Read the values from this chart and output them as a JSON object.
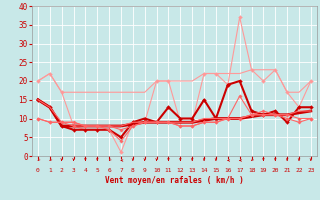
{
  "xlabel": "Vent moyen/en rafales ( km/h )",
  "xlim": [
    -0.5,
    23.5
  ],
  "ylim": [
    0,
    40
  ],
  "yticks": [
    0,
    5,
    10,
    15,
    20,
    25,
    30,
    35,
    40
  ],
  "xticks": [
    0,
    1,
    2,
    3,
    4,
    5,
    6,
    7,
    8,
    9,
    10,
    11,
    12,
    13,
    14,
    15,
    16,
    17,
    18,
    19,
    20,
    21,
    22,
    23
  ],
  "bg_color": "#c8e8e8",
  "grid_color": "#ffffff",
  "lines": [
    {
      "x": [
        0,
        1,
        2,
        3,
        4,
        5,
        6,
        7,
        8,
        9,
        10,
        11,
        12,
        13,
        14,
        15,
        16,
        17,
        18,
        19,
        20,
        21,
        22,
        23
      ],
      "y": [
        20,
        22,
        17,
        8,
        7,
        7,
        7,
        1,
        9,
        9,
        20,
        20,
        9,
        9,
        22,
        22,
        19,
        37,
        23,
        20,
        23,
        17,
        13,
        20
      ],
      "color": "#ff9999",
      "lw": 0.8,
      "marker": "D",
      "ms": 2.0
    },
    {
      "x": [
        0,
        1,
        2,
        3,
        4,
        5,
        6,
        7,
        8,
        9,
        10,
        11,
        12,
        13,
        14,
        15,
        16,
        17,
        18,
        19,
        20,
        21,
        22,
        23
      ],
      "y": [
        20,
        22,
        17,
        17,
        17,
        17,
        17,
        17,
        17,
        17,
        20,
        20,
        20,
        20,
        22,
        22,
        22,
        22,
        23,
        23,
        23,
        17,
        17,
        20
      ],
      "color": "#ff9999",
      "lw": 0.8,
      "marker": null,
      "ms": 0
    },
    {
      "x": [
        0,
        1,
        2,
        3,
        4,
        5,
        6,
        7,
        8,
        9,
        10,
        11,
        12,
        13,
        14,
        15,
        16,
        17,
        18,
        19,
        20,
        21,
        22,
        23
      ],
      "y": [
        15,
        13,
        8,
        7,
        7,
        7,
        7,
        5,
        9,
        10,
        9,
        13,
        10,
        10,
        15,
        10,
        19,
        20,
        12,
        11,
        12,
        9,
        13,
        13
      ],
      "color": "#cc0000",
      "lw": 1.5,
      "marker": "D",
      "ms": 2.0
    },
    {
      "x": [
        0,
        1,
        2,
        3,
        4,
        5,
        6,
        7,
        8,
        9,
        10,
        11,
        12,
        13,
        14,
        15,
        16,
        17,
        18,
        19,
        20,
        21,
        22,
        23
      ],
      "y": [
        15,
        13,
        8,
        8,
        8,
        8,
        8,
        8,
        8.5,
        9,
        9,
        9,
        9,
        9,
        9.5,
        10,
        10,
        10,
        10.5,
        11,
        11,
        11,
        11.5,
        12
      ],
      "color": "#cc0000",
      "lw": 2.0,
      "marker": null,
      "ms": 0
    },
    {
      "x": [
        0,
        1,
        2,
        3,
        4,
        5,
        6,
        7,
        8,
        9,
        10,
        11,
        12,
        13,
        14,
        15,
        16,
        17,
        18,
        19,
        20,
        21,
        22,
        23
      ],
      "y": [
        10,
        9,
        9,
        9,
        8,
        8,
        8,
        7,
        8,
        9,
        9,
        9,
        8,
        8,
        9,
        9,
        10,
        10,
        11,
        11,
        11,
        11,
        10,
        10
      ],
      "color": "#ff6666",
      "lw": 0.8,
      "marker": "D",
      "ms": 1.8
    },
    {
      "x": [
        0,
        1,
        2,
        3,
        4,
        5,
        6,
        7,
        8,
        9,
        10,
        11,
        12,
        13,
        14,
        15,
        16,
        17,
        18,
        19,
        20,
        21,
        22,
        23
      ],
      "y": [
        10,
        9,
        9,
        8,
        8,
        8,
        7,
        4,
        8,
        9,
        9,
        9,
        8,
        8,
        9,
        9,
        10,
        16,
        11,
        12,
        11,
        10,
        9,
        10
      ],
      "color": "#ff6666",
      "lw": 0.8,
      "marker": "D",
      "ms": 1.8
    },
    {
      "x": [
        0,
        1,
        2,
        3,
        4,
        5,
        6,
        7,
        8,
        9,
        10,
        11,
        12,
        13,
        14,
        15,
        16,
        17,
        18,
        19,
        20,
        21,
        22,
        23
      ],
      "y": [
        15,
        13,
        9,
        9,
        8,
        8,
        8,
        8,
        9,
        9,
        9,
        9,
        9,
        9,
        10,
        10,
        10,
        10,
        11,
        11,
        11,
        11,
        12,
        12
      ],
      "color": "#ff6666",
      "lw": 0.8,
      "marker": null,
      "ms": 0
    }
  ],
  "arrow_color": "#cc0000",
  "arrow_directions": [
    315,
    315,
    0,
    0,
    0,
    0,
    315,
    270,
    0,
    0,
    0,
    0,
    0,
    0,
    0,
    0,
    270,
    270,
    315,
    0,
    0,
    0,
    0,
    0
  ]
}
